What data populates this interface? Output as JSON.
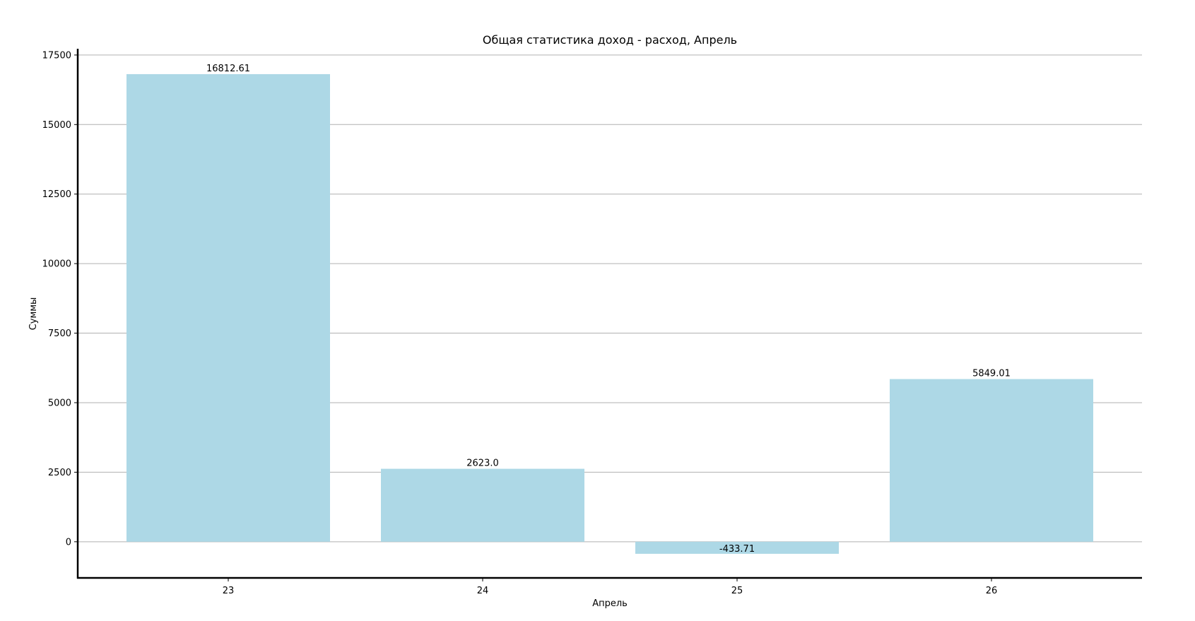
{
  "chart_data": {
    "type": "bar",
    "title": "Общая статистика доход - расход, Апрель",
    "xlabel": "Апрель",
    "ylabel": "Суммы",
    "categories": [
      "23",
      "24",
      "25",
      "26"
    ],
    "values": [
      16812.61,
      2623.0,
      -433.71,
      5849.01
    ],
    "data_labels": [
      "16812.61",
      "2623.0",
      "-433.71",
      "5849.01"
    ],
    "yticks": [
      0,
      2500,
      5000,
      7500,
      10000,
      12500,
      15000,
      17500
    ],
    "ylim": [
      -1300,
      17700
    ],
    "grid": true,
    "colors": {
      "bar": "#add8e6",
      "grid": "#b0b0b0",
      "axis": "#000000"
    }
  }
}
